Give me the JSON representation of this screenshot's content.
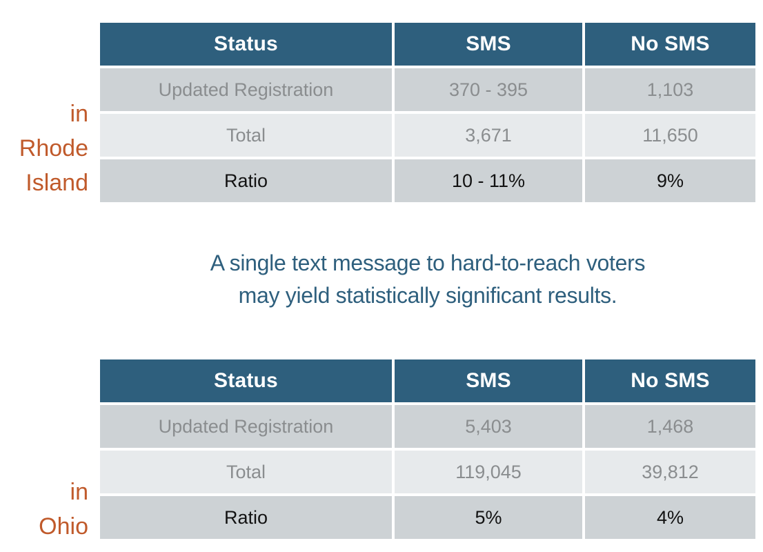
{
  "colors": {
    "header_bg": "#2E5F7D",
    "row_dark_bg": "#CDD2D5",
    "row_light_bg": "#E7EAEC",
    "header_text": "#FFFFFF",
    "muted_text": "#8A8D8F",
    "strong_text": "#121212",
    "accent_orange": "#C05A2B",
    "callout_text": "#2E5F7D"
  },
  "callout": {
    "line1": "A single text message to hard-to-reach voters",
    "line2": "may yield statistically significant results."
  },
  "sections": [
    {
      "location": "in Rhode Island",
      "label_lines": [
        "in",
        "Rhode",
        "Island"
      ],
      "table": {
        "headers": [
          "Status",
          "SMS",
          "No SMS"
        ],
        "rows": [
          [
            "Updated Registration",
            "370 - 395",
            "1,103"
          ],
          [
            "Total",
            "3,671",
            "11,650"
          ],
          [
            "Ratio",
            "10 - 11%",
            "9%"
          ]
        ]
      }
    },
    {
      "location": "in Ohio",
      "label_lines": [
        "in",
        "Ohio"
      ],
      "table": {
        "headers": [
          "Status",
          "SMS",
          "No SMS"
        ],
        "rows": [
          [
            "Updated Registration",
            "5,403",
            "1,468"
          ],
          [
            "Total",
            "119,045",
            "39,812"
          ],
          [
            "Ratio",
            "5%",
            "4%"
          ]
        ]
      }
    }
  ],
  "chart_data": [
    {
      "type": "table",
      "title": "in Rhode Island",
      "columns": [
        "Status",
        "SMS",
        "No SMS"
      ],
      "rows": [
        [
          "Updated Registration",
          "370 - 395",
          "1,103"
        ],
        [
          "Total",
          "3,671",
          "11,650"
        ],
        [
          "Ratio",
          "10 - 11%",
          "9%"
        ]
      ]
    },
    {
      "type": "table",
      "title": "in Ohio",
      "columns": [
        "Status",
        "SMS",
        "No SMS"
      ],
      "rows": [
        [
          "Updated Registration",
          "5,403",
          "1,468"
        ],
        [
          "Total",
          "119,045",
          "39,812"
        ],
        [
          "Ratio",
          "5%",
          "4%"
        ]
      ]
    }
  ]
}
